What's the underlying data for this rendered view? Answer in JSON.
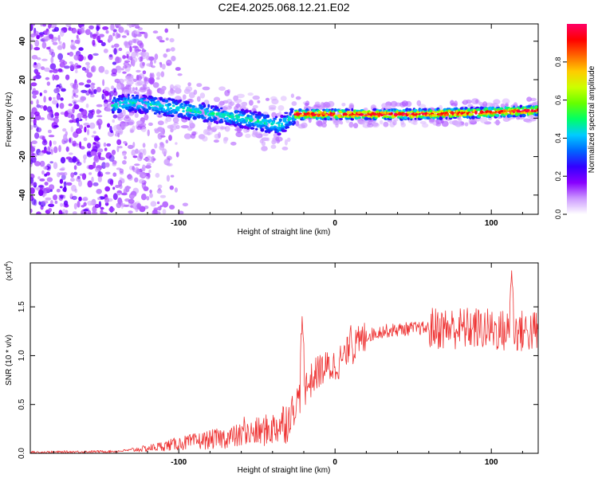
{
  "title": "C2E4.2025.068.12.21.E02",
  "chart_data": [
    {
      "type": "heatmap",
      "title": "C2E4.2025.068.12.21.E02",
      "xlabel": "Height of straight line (km)",
      "ylabel": "Frequency (Hz)",
      "xlim": [
        -195,
        130
      ],
      "ylim": [
        -50,
        49
      ],
      "xticks": [
        -100,
        0,
        100
      ],
      "yticks": [
        -40,
        -20,
        0,
        20,
        40
      ],
      "colorbar": {
        "label": "Normalized spectral amplitude",
        "range": [
          0,
          1
        ],
        "ticks": [
          "0.0",
          "0.2",
          "0.4",
          "0.6",
          "0.8"
        ],
        "colors": [
          "#ffffff",
          "#cc99ff",
          "#8800ff",
          "#3300ff",
          "#0066ff",
          "#00ccff",
          "#00ff66",
          "#66ff00",
          "#ccff00",
          "#ffcc00",
          "#ff6600",
          "#ff0000",
          "#ff0066"
        ]
      },
      "trend": {
        "description_points_height_km": [
          -195,
          -130,
          -100,
          -60,
          -35,
          -25,
          0,
          50,
          100,
          130
        ],
        "center_frequency_hz": [
          0,
          8,
          5,
          0,
          -4,
          2,
          2,
          2,
          3,
          4
        ]
      }
    },
    {
      "type": "line",
      "xlabel": "Height of straight line (km)",
      "ylabel": "SNR (10 * v/v)",
      "scale_label": "(x10",
      "scale_exp": "4",
      "xlim": [
        -195,
        130
      ],
      "ylim": [
        0,
        1.95
      ],
      "xticks": [
        -100,
        0,
        100
      ],
      "yticks": [
        "0.0",
        "0.5",
        "1.0",
        "1.5"
      ],
      "series": [
        {
          "name": "SNR",
          "color": "#ee3333",
          "envelope_x": [
            -195,
            -140,
            -120,
            -100,
            -80,
            -60,
            -40,
            -30,
            -22,
            -20,
            -10,
            0,
            10,
            20,
            30,
            50,
            70,
            90,
            110,
            130
          ],
          "envelope_y": [
            0.01,
            0.02,
            0.05,
            0.1,
            0.14,
            0.18,
            0.25,
            0.35,
            0.6,
            0.65,
            0.85,
            0.9,
            1.05,
            1.2,
            1.25,
            1.28,
            1.28,
            1.28,
            1.25,
            1.25
          ],
          "spikes": [
            {
              "x": -58,
              "y": 0.42
            },
            {
              "x": -21,
              "y": 1.43
            },
            {
              "x": 10,
              "y": 1.38
            },
            {
              "x": 113,
              "y": 1.92
            }
          ]
        }
      ]
    }
  ]
}
